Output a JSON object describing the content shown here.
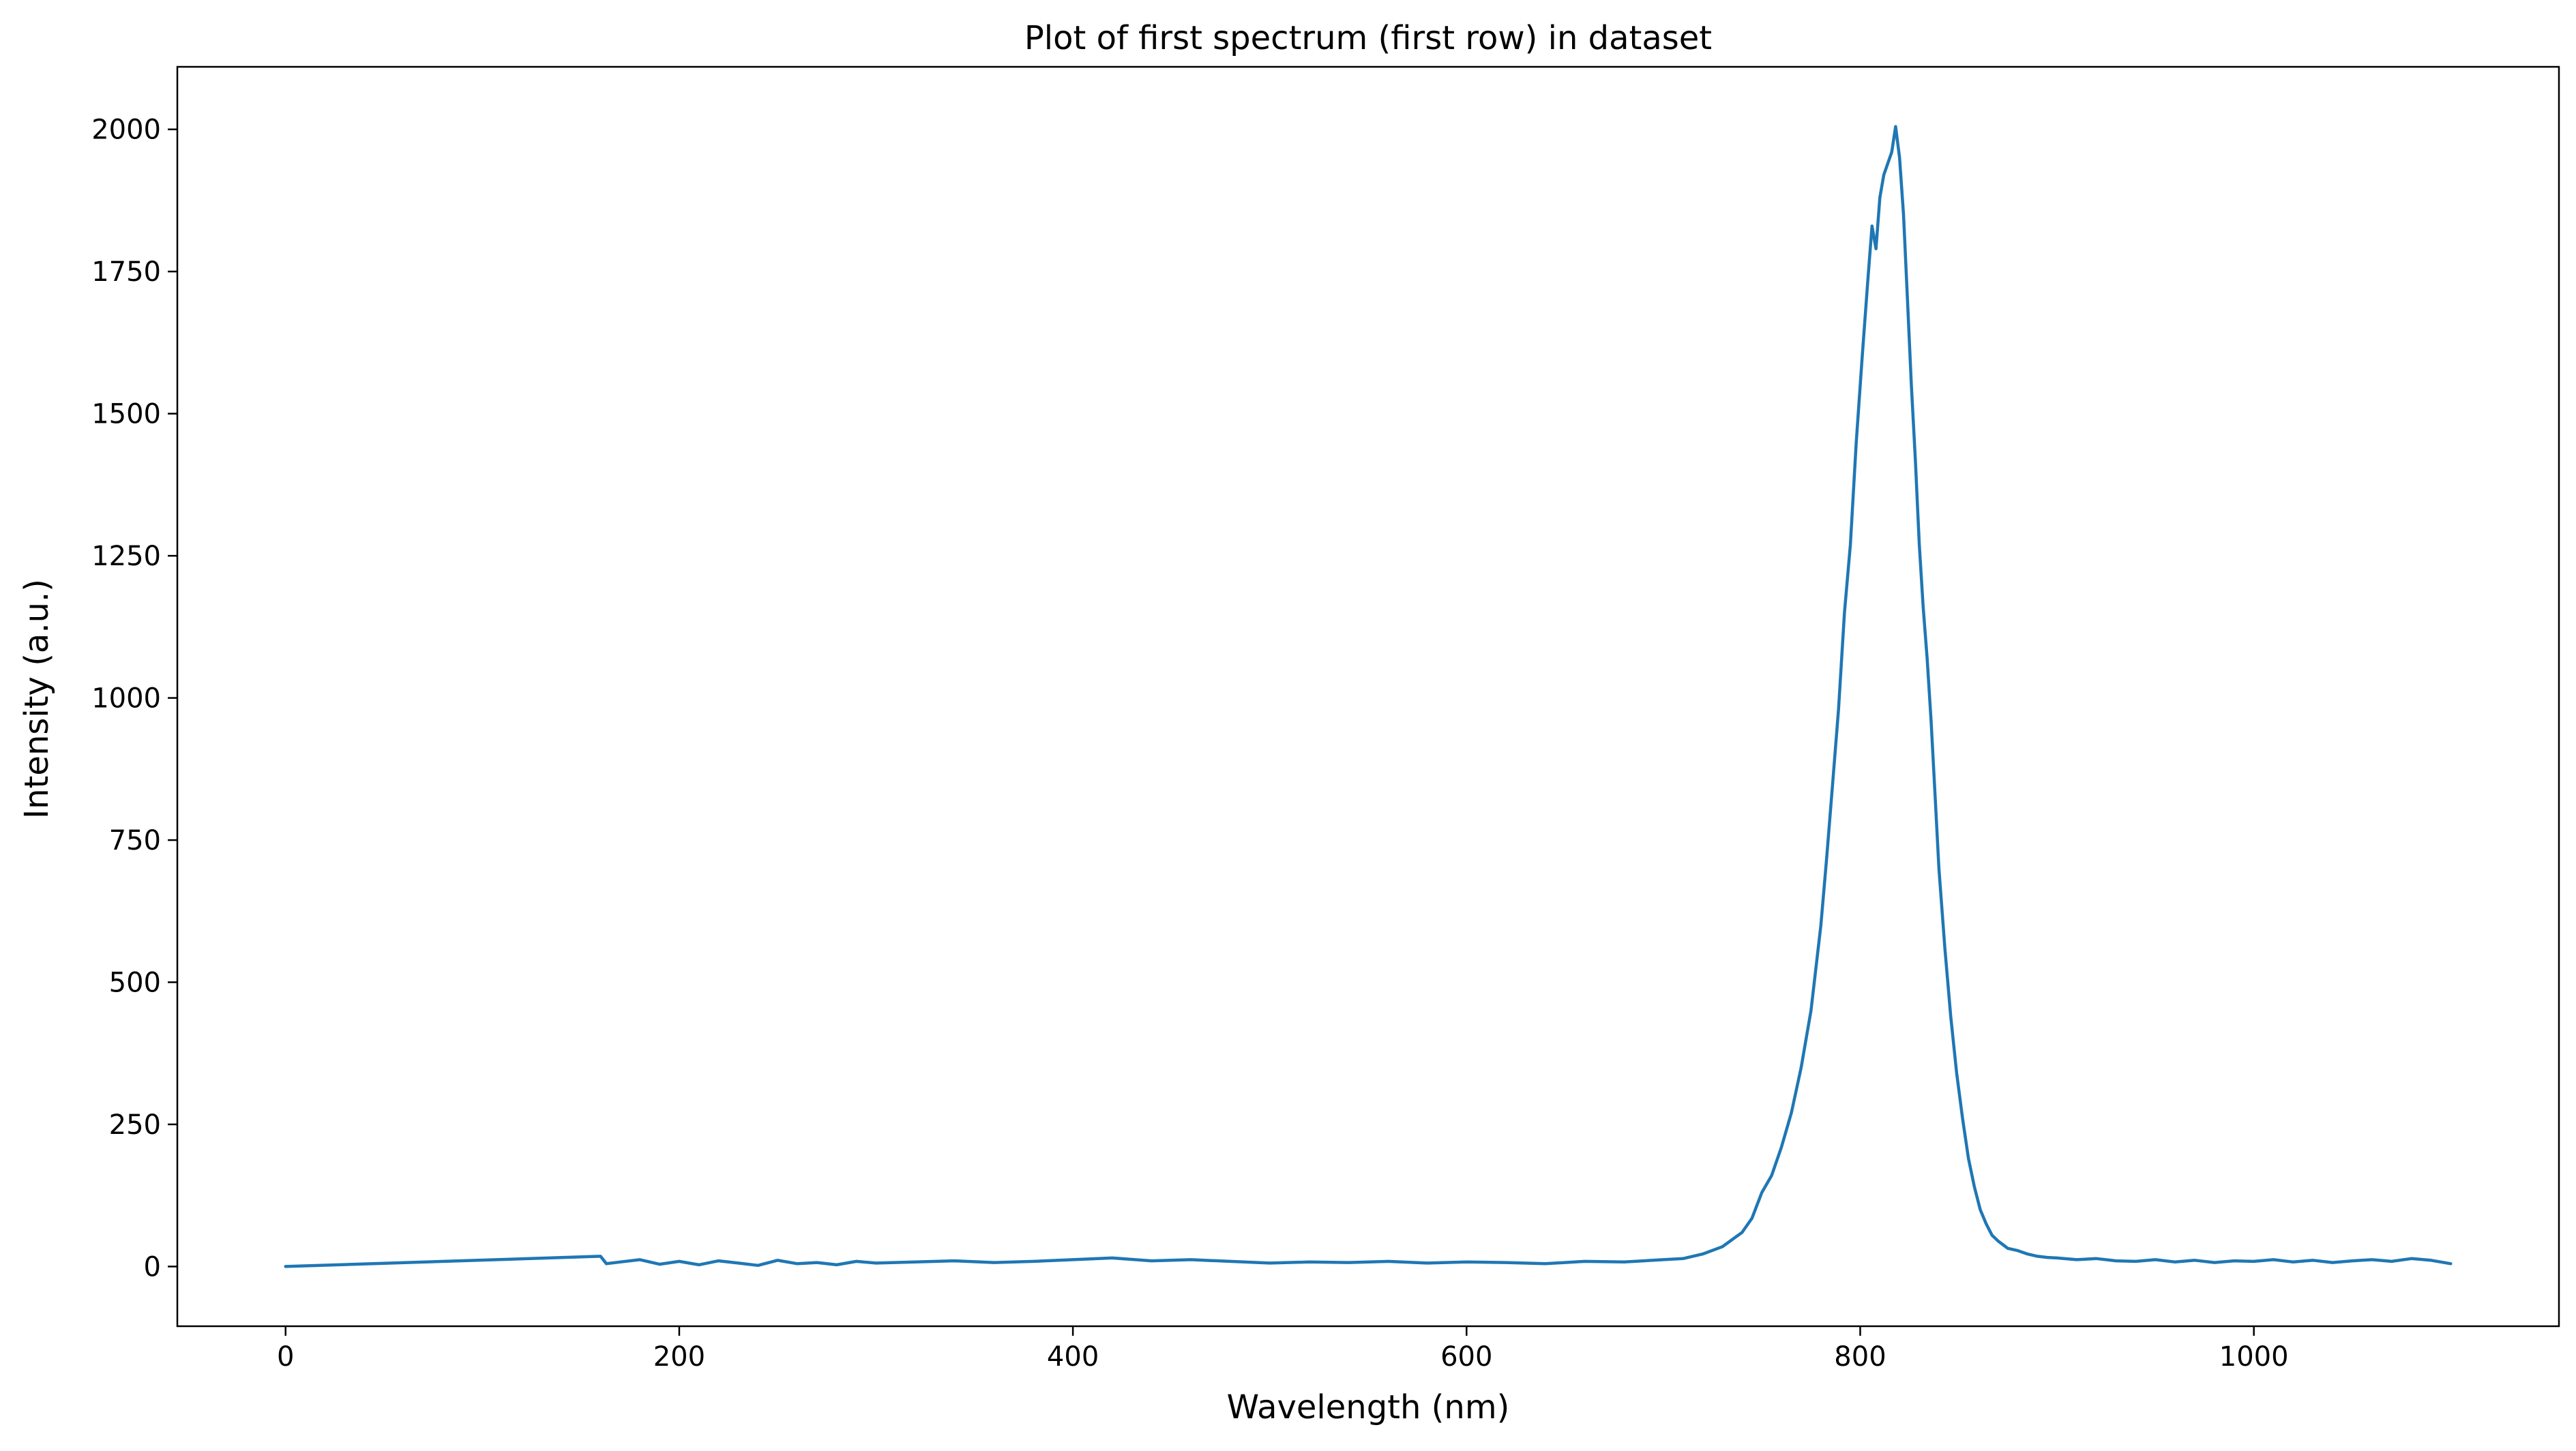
{
  "chart_data": {
    "type": "line",
    "title": "Plot of first spectrum (first row) in dataset",
    "xlabel": "Wavelength (nm)",
    "ylabel": "Intensity (a.u.)",
    "xlim": [
      -55,
      1155
    ],
    "ylim": [
      -105,
      2110
    ],
    "xticks": [
      0,
      200,
      400,
      600,
      800,
      1000
    ],
    "xtick_labels": [
      "0",
      "200",
      "400",
      "600",
      "800",
      "1000"
    ],
    "yticks": [
      0,
      250,
      500,
      750,
      1000,
      1250,
      1500,
      1750,
      2000
    ],
    "ytick_labels": [
      "0",
      "250",
      "500",
      "750",
      "1000",
      "1250",
      "1500",
      "1750",
      "2000"
    ],
    "grid": false,
    "legend": "none",
    "colors": {
      "line": "#1f77b4",
      "axes": "#000000",
      "background": "#ffffff"
    },
    "series": [
      {
        "x": [
          0,
          160,
          163,
          170,
          180,
          190,
          200,
          210,
          220,
          230,
          240,
          250,
          260,
          270,
          280,
          290,
          300,
          320,
          340,
          360,
          380,
          400,
          420,
          440,
          460,
          480,
          500,
          520,
          540,
          560,
          580,
          600,
          620,
          640,
          660,
          680,
          700,
          710,
          720,
          730,
          740,
          745,
          750,
          755,
          760,
          765,
          770,
          775,
          780,
          783,
          786,
          789,
          792,
          795,
          798,
          801,
          804,
          806,
          808,
          810,
          812,
          814,
          816,
          818,
          820,
          822,
          824,
          826,
          828,
          830,
          832,
          834,
          836,
          838,
          840,
          843,
          846,
          849,
          852,
          855,
          858,
          861,
          864,
          867,
          870,
          875,
          880,
          885,
          890,
          895,
          900,
          910,
          920,
          930,
          940,
          950,
          960,
          970,
          980,
          990,
          1000,
          1010,
          1020,
          1030,
          1040,
          1050,
          1060,
          1070,
          1080,
          1090,
          1100
        ],
        "y": [
          0,
          18,
          5,
          8,
          12,
          4,
          9,
          3,
          10,
          6,
          2,
          11,
          5,
          7,
          3,
          9,
          6,
          8,
          10,
          7,
          9,
          12,
          15,
          10,
          12,
          9,
          6,
          8,
          7,
          9,
          6,
          8,
          7,
          5,
          9,
          8,
          12,
          14,
          22,
          35,
          60,
          85,
          130,
          160,
          210,
          270,
          350,
          450,
          600,
          720,
          850,
          980,
          1150,
          1270,
          1450,
          1600,
          1740,
          1830,
          1790,
          1880,
          1920,
          1940,
          1960,
          2005,
          1950,
          1850,
          1700,
          1550,
          1420,
          1270,
          1160,
          1070,
          960,
          830,
          700,
          560,
          440,
          340,
          260,
          190,
          140,
          100,
          75,
          55,
          45,
          32,
          28,
          22,
          18,
          16,
          15,
          12,
          14,
          10,
          9,
          12,
          8,
          11,
          7,
          10,
          9,
          12,
          8,
          11,
          7,
          10,
          12,
          9,
          14,
          11,
          5
        ]
      }
    ]
  }
}
